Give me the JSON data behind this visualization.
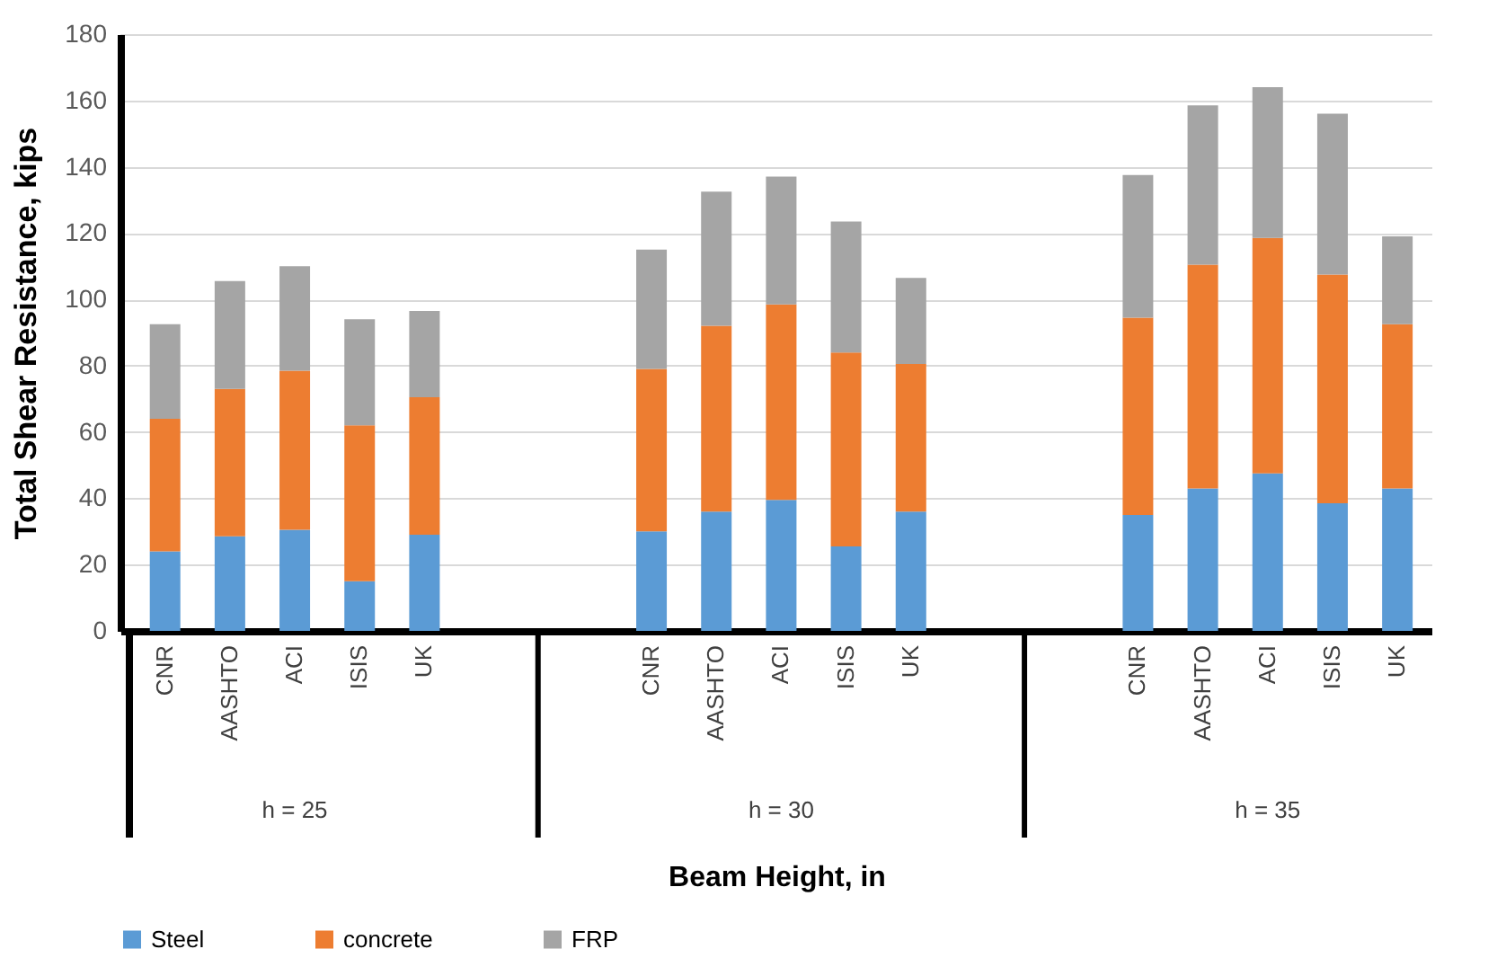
{
  "chart_data": {
    "type": "bar",
    "stacked": true,
    "categories": [
      "CNR",
      "AASHTO",
      "ACI",
      "ISIS",
      "UK",
      "CNR",
      "AASHTO",
      "ACI",
      "ISIS",
      "UK",
      "CNR",
      "AASHTO",
      "ACI",
      "ISIS",
      "UK"
    ],
    "series": [
      {
        "name": "Steel",
        "color": "#5b9bd5",
        "values": [
          24,
          28.5,
          30.5,
          15,
          29,
          30,
          36,
          39.5,
          25.5,
          36,
          35,
          43,
          47.5,
          38.5,
          43
        ]
      },
      {
        "name": "concrete",
        "color": "#ed7d31",
        "values": [
          40,
          44.5,
          48,
          47,
          41.5,
          49,
          56,
          59,
          58.5,
          44.5,
          59.5,
          67.5,
          71,
          69,
          49.5
        ]
      },
      {
        "name": "FRP",
        "color": "#a5a5a5",
        "values": [
          28.5,
          32.5,
          31.5,
          32,
          26,
          36,
          40.5,
          38.5,
          39.5,
          26,
          43,
          48,
          45.5,
          48.5,
          26.5
        ]
      }
    ],
    "annotations": [
      "h = 25",
      "h = 30",
      "h = 35"
    ],
    "xlabel": "Beam Height, in",
    "ylabel": "Total Shear Resistance, kips",
    "ylim": [
      0,
      180
    ],
    "yticks": [
      0,
      20,
      40,
      60,
      80,
      100,
      120,
      140,
      160,
      180
    ],
    "grid": "y",
    "legend": "bottom"
  }
}
